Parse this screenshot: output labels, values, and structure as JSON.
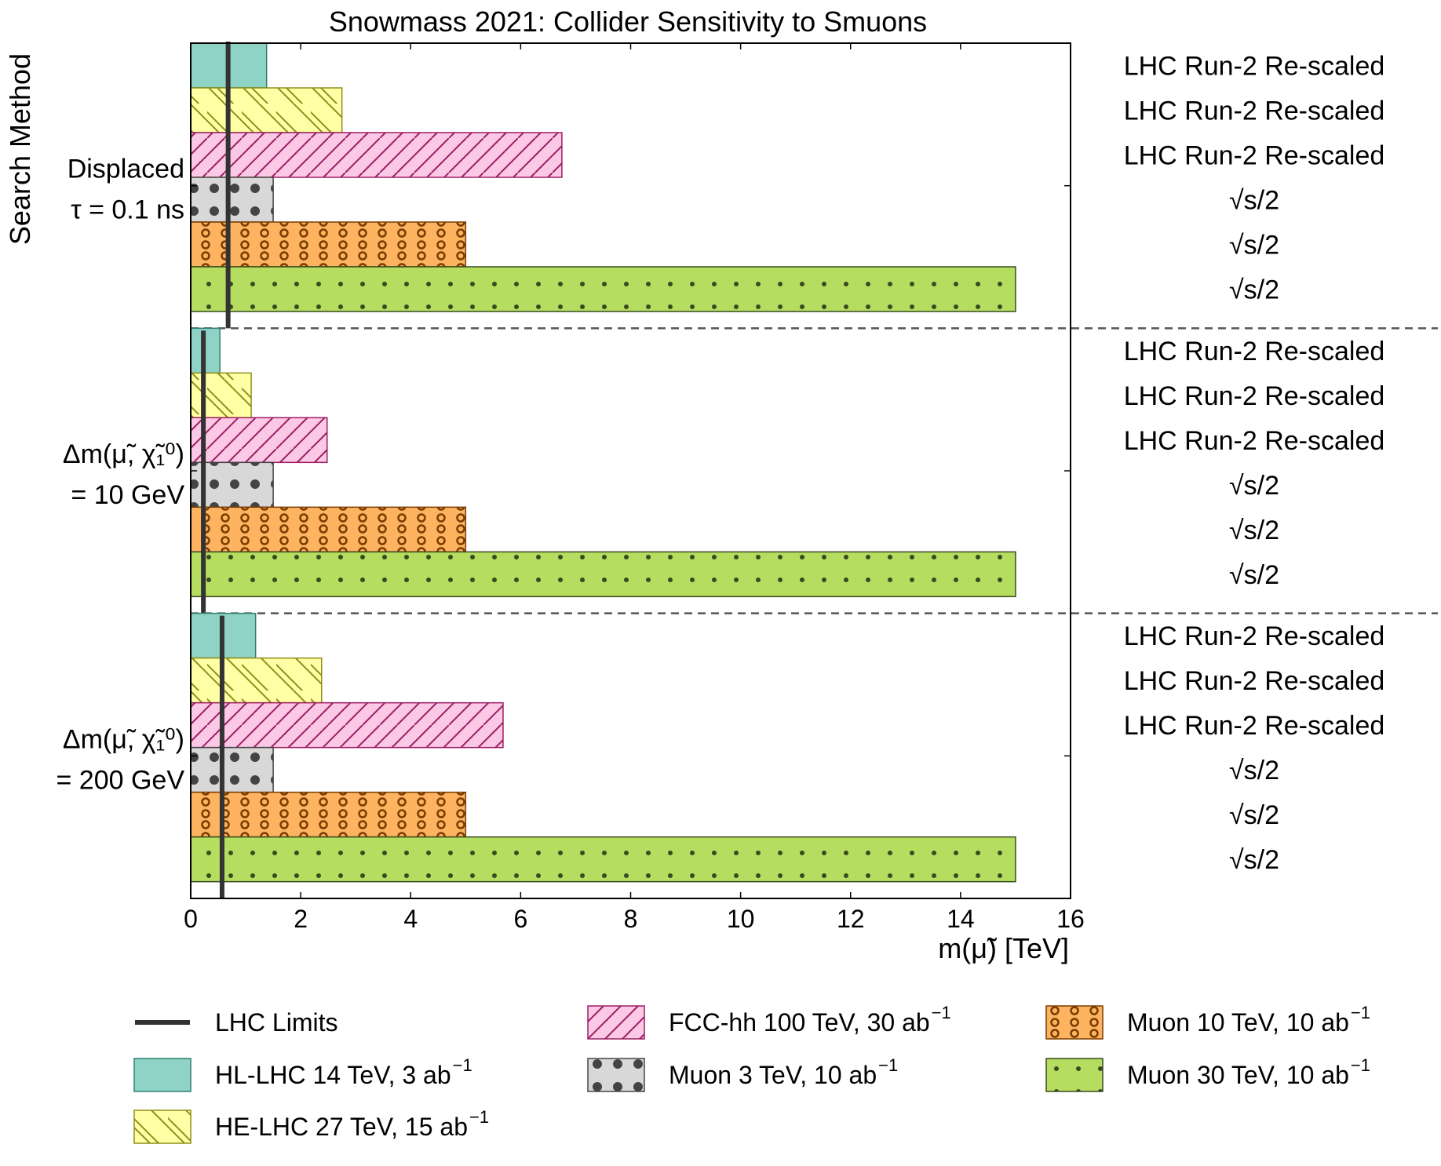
{
  "chart_data": {
    "type": "bar",
    "orientation": "horizontal",
    "title": "Snowmass 2021: Collider Sensitivity to Smuons",
    "xlabel": "m(μ̃) [TeV]",
    "ylabel": "Search Method",
    "xlim": [
      0,
      16
    ],
    "xticks": [
      "0",
      "2",
      "4",
      "6",
      "8",
      "10",
      "12",
      "14",
      "16"
    ],
    "grid": false,
    "legend_position": "bottom",
    "groups": [
      {
        "label_lines": [
          "Displaced",
          "τ = 0.1 ns"
        ],
        "lhc_limit": 0.68,
        "bars": [
          {
            "series": "HL-LHC 14 TeV",
            "value": 1.38,
            "note": "LHC Run-2 Re-scaled"
          },
          {
            "series": "HE-LHC 27 TeV",
            "value": 2.75,
            "note": "LHC Run-2 Re-scaled"
          },
          {
            "series": "FCC-hh 100 TeV",
            "value": 6.75,
            "note": "LHC Run-2 Re-scaled"
          },
          {
            "series": "Muon 3 TeV",
            "value": 1.5,
            "note": "√s/2"
          },
          {
            "series": "Muon 10 TeV",
            "value": 5.0,
            "note": "√s/2"
          },
          {
            "series": "Muon 30 TeV",
            "value": 15.0,
            "note": "√s/2"
          }
        ]
      },
      {
        "label_lines": [
          "Δm(μ̃, χ̃₁⁰)",
          "= 10 GeV"
        ],
        "lhc_limit": 0.23,
        "bars": [
          {
            "series": "HL-LHC 14 TeV",
            "value": 0.53,
            "note": "LHC Run-2 Re-scaled"
          },
          {
            "series": "HE-LHC 27 TeV",
            "value": 1.1,
            "note": "LHC Run-2 Re-scaled"
          },
          {
            "series": "FCC-hh 100 TeV",
            "value": 2.48,
            "note": "LHC Run-2 Re-scaled"
          },
          {
            "series": "Muon 3 TeV",
            "value": 1.5,
            "note": "√s/2"
          },
          {
            "series": "Muon 10 TeV",
            "value": 5.0,
            "note": "√s/2"
          },
          {
            "series": "Muon 30 TeV",
            "value": 15.0,
            "note": "√s/2"
          }
        ]
      },
      {
        "label_lines": [
          "Δm(μ̃, χ̃₁⁰)",
          "= 200 GeV"
        ],
        "lhc_limit": 0.57,
        "bars": [
          {
            "series": "HL-LHC 14 TeV",
            "value": 1.18,
            "note": "LHC Run-2 Re-scaled"
          },
          {
            "series": "HE-LHC 27 TeV",
            "value": 2.38,
            "note": "LHC Run-2 Re-scaled"
          },
          {
            "series": "FCC-hh 100 TeV",
            "value": 5.68,
            "note": "LHC Run-2 Re-scaled"
          },
          {
            "series": "Muon 3 TeV",
            "value": 1.5,
            "note": "√s/2"
          },
          {
            "series": "Muon 10 TeV",
            "value": 5.0,
            "note": "√s/2"
          },
          {
            "series": "Muon 30 TeV",
            "value": 15.0,
            "note": "√s/2"
          }
        ]
      }
    ],
    "series_styles": [
      {
        "name": "HL-LHC 14 TeV",
        "fill": "#8fd3c6",
        "stroke": "#2f7f74",
        "pattern": "solid"
      },
      {
        "name": "HE-LHC 27 TeV",
        "fill": "#ffffa6",
        "stroke": "#8f8f1a",
        "pattern": "backslash"
      },
      {
        "name": "FCC-hh 100 TeV",
        "fill": "#fbc8e6",
        "stroke": "#9c1d63",
        "pattern": "slash"
      },
      {
        "name": "Muon 3 TeV",
        "fill": "#d8d8d8",
        "stroke": "#444444",
        "pattern": "big-dots"
      },
      {
        "name": "Muon 10 TeV",
        "fill": "#fdb35f",
        "stroke": "#7a3d00",
        "pattern": "circles"
      },
      {
        "name": "Muon 30 TeV",
        "fill": "#b5dd5f",
        "stroke": "#3a4a20",
        "pattern": "small-dots"
      }
    ],
    "lhc_line_color": "#333333",
    "separator_color": "#555555"
  },
  "legend": {
    "items": [
      {
        "key": "lhc-limits",
        "label": "LHC Limits",
        "sup": ""
      },
      {
        "key": "hl-lhc",
        "label": "HL-LHC 14 TeV, 3 ab",
        "sup": "−1"
      },
      {
        "key": "he-lhc",
        "label": "HE-LHC 27 TeV, 15 ab",
        "sup": "−1"
      },
      {
        "key": "fcc-hh",
        "label": "FCC-hh 100 TeV, 30 ab",
        "sup": "−1"
      },
      {
        "key": "muon-3",
        "label": "Muon 3 TeV, 10 ab",
        "sup": "−1"
      },
      {
        "key": "muon-10",
        "label": "Muon 10 TeV, 10 ab",
        "sup": "−1"
      },
      {
        "key": "muon-30",
        "label": "Muon 30 TeV, 10 ab",
        "sup": "−1"
      }
    ]
  }
}
